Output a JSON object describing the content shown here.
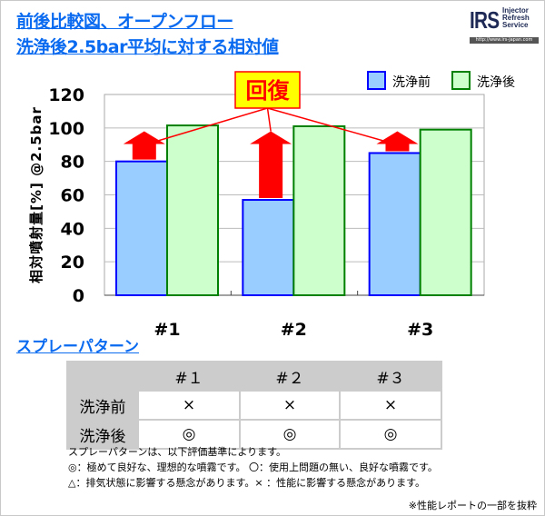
{
  "header": {
    "title_line1": "前後比較図、オープンフロー",
    "title_line2": "洗浄後2.5bar平均に対する相対値"
  },
  "logo": {
    "mark": "IRS",
    "name_lines": [
      "Injector",
      "Refresh",
      "Service"
    ],
    "url": "http://www.irs-japan.com"
  },
  "chart_data": {
    "type": "bar",
    "categories": [
      "#1",
      "#2",
      "#3"
    ],
    "series": [
      {
        "name": "洗浄前",
        "values": [
          80,
          57,
          85
        ],
        "fill": "#99ccff",
        "stroke": "#0000ff"
      },
      {
        "name": "洗浄後",
        "values": [
          101.5,
          101,
          99
        ],
        "fill": "#ccffcc",
        "stroke": "#008000"
      }
    ],
    "ylabel": "相対噴射量[%] @2.5bar",
    "ylim": [
      0,
      120
    ],
    "yticks": [
      0,
      20,
      40,
      60,
      80,
      100,
      120
    ],
    "grid": true,
    "legend": "top-right",
    "annotation": "回復"
  },
  "spray": {
    "title": "スプレーパターン",
    "headers": [
      "",
      "#１",
      "#２",
      "#３"
    ],
    "rows": [
      {
        "label": "洗浄前",
        "values": [
          "×",
          "×",
          "×"
        ]
      },
      {
        "label": "洗浄後",
        "values": [
          "◎",
          "◎",
          "◎"
        ]
      }
    ],
    "notes": [
      "スプレーパターンは、以下評価基準によります。",
      "◎：極めて良好な、理想的な噴霧です。 〇：使用上問題の無い、良好な噴霧です。",
      "△：排気状態に影響する懸念があります。× ：性能に影響する懸念があります。"
    ],
    "footnote": "※性能レポートの一部を抜粋"
  }
}
